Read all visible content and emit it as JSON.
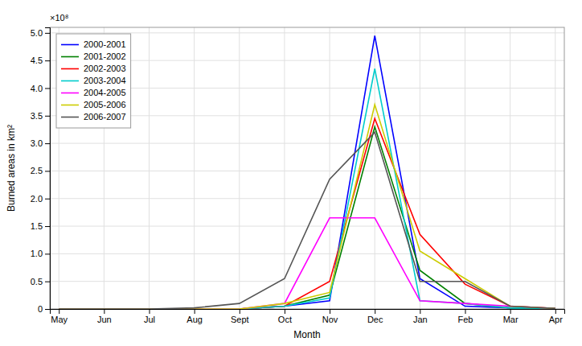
{
  "chart_data": {
    "type": "line",
    "xlabel": "Month",
    "ylabel": "Burned areas in km²",
    "annotation": "×10⁸",
    "categories": [
      "May",
      "Jun",
      "Jul",
      "Aug",
      "Sept",
      "Oct",
      "Nov",
      "Dec",
      "Jan",
      "Feb",
      "Mar",
      "Apr"
    ],
    "series": [
      {
        "name": "2000-2001",
        "color": "#0000FF",
        "values": [
          0.0,
          0.0,
          0.0,
          0.0,
          0.0,
          0.05,
          0.15,
          4.95,
          0.55,
          0.05,
          0.02,
          0.01
        ]
      },
      {
        "name": "2001-2002",
        "color": "#008000",
        "values": [
          0.0,
          0.0,
          0.0,
          0.0,
          0.0,
          0.05,
          0.25,
          3.3,
          0.7,
          0.1,
          0.02,
          0.01
        ]
      },
      {
        "name": "2002-2003",
        "color": "#FF0000",
        "values": [
          0.0,
          0.0,
          0.0,
          0.0,
          0.0,
          0.05,
          0.5,
          3.45,
          1.35,
          0.45,
          0.05,
          0.01
        ]
      },
      {
        "name": "2003-2004",
        "color": "#00CCCC",
        "values": [
          0.0,
          0.0,
          0.0,
          0.0,
          0.0,
          0.05,
          0.2,
          4.35,
          0.15,
          0.1,
          0.02,
          0.01
        ]
      },
      {
        "name": "2004-2005",
        "color": "#FF00FF",
        "values": [
          0.0,
          0.0,
          0.0,
          0.0,
          0.0,
          0.1,
          1.65,
          1.65,
          0.15,
          0.1,
          0.05,
          0.01
        ]
      },
      {
        "name": "2005-2006",
        "color": "#CCCC00",
        "values": [
          0.0,
          0.0,
          0.0,
          0.0,
          0.0,
          0.1,
          0.3,
          3.7,
          1.05,
          0.55,
          0.05,
          0.01
        ]
      },
      {
        "name": "2006-2007",
        "color": "#555555",
        "values": [
          0.0,
          0.0,
          0.0,
          0.02,
          0.1,
          0.55,
          2.35,
          3.2,
          0.5,
          0.5,
          0.05,
          0.01
        ]
      }
    ],
    "ylim": [
      0,
      5.1
    ],
    "yticks": [
      0,
      0.5,
      {
        "value": 1,
        "label": "1.0"
      },
      1.5,
      {
        "value": 2,
        "label": "2.0"
      },
      2.5,
      {
        "value": 3,
        "label": "3.0"
      },
      3.5,
      {
        "value": 4,
        "label": "4.0"
      },
      4.5,
      {
        "value": 5,
        "label": "5.0"
      }
    ],
    "grid": true,
    "legend": "upper left"
  }
}
